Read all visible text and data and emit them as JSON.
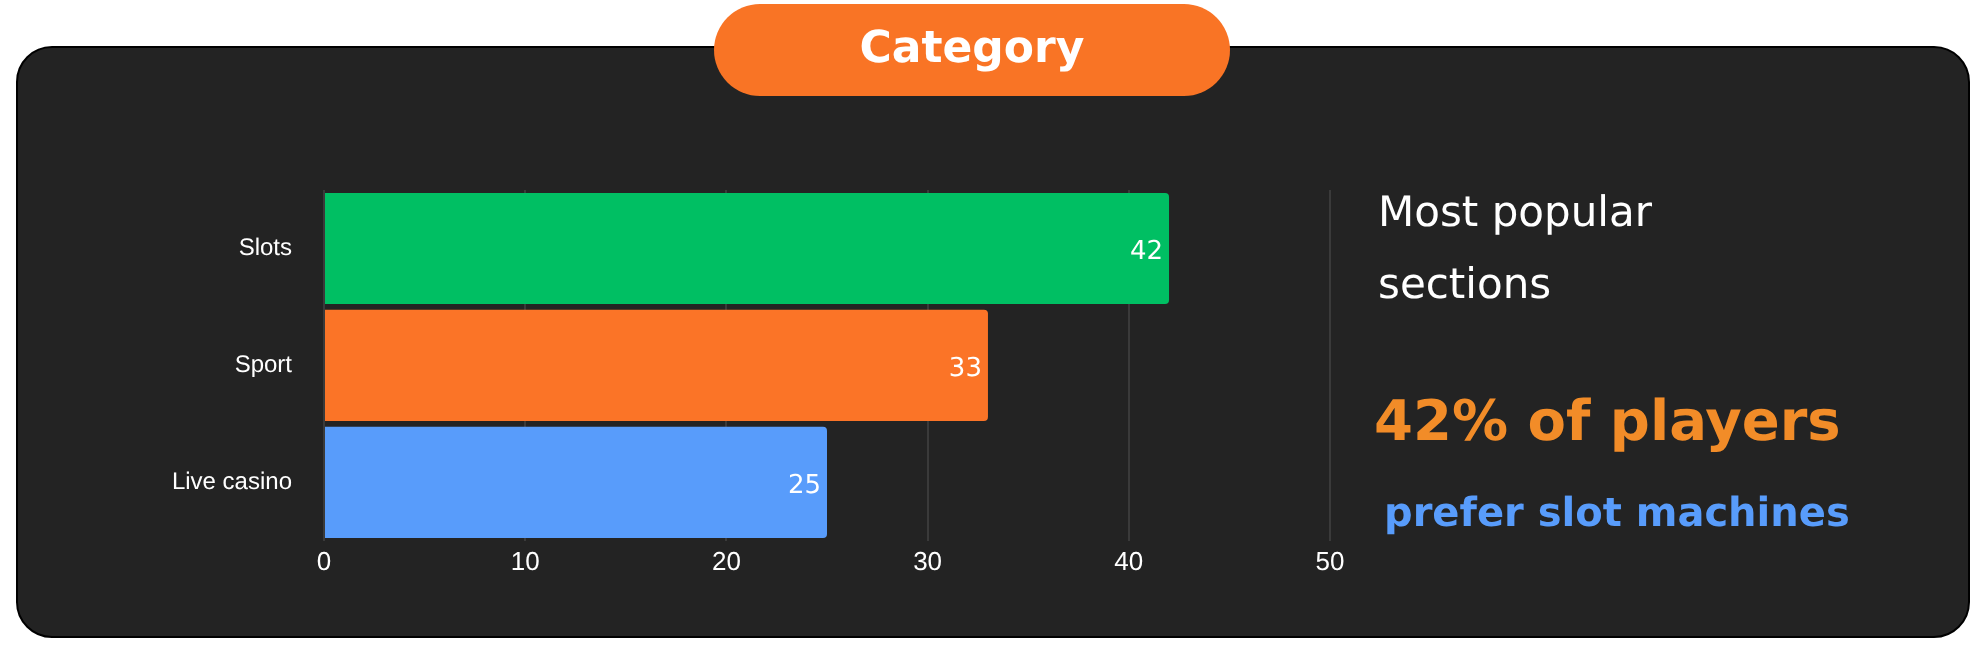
{
  "chart_data": {
    "type": "bar",
    "orientation": "horizontal",
    "title": "Category",
    "categories": [
      "Slots",
      "Sport",
      "Live casino"
    ],
    "values": [
      42,
      33,
      25
    ],
    "colors": [
      "#00bf63",
      "#fb7427",
      "#589cfb"
    ],
    "xlim": [
      0,
      50
    ],
    "xticks": [
      0,
      10,
      20,
      30,
      40,
      50
    ],
    "grid": "x",
    "legend": false,
    "data_labels": true,
    "annotations": [
      "Most popular sections",
      "42% of players",
      "prefer slot machines"
    ]
  }
}
